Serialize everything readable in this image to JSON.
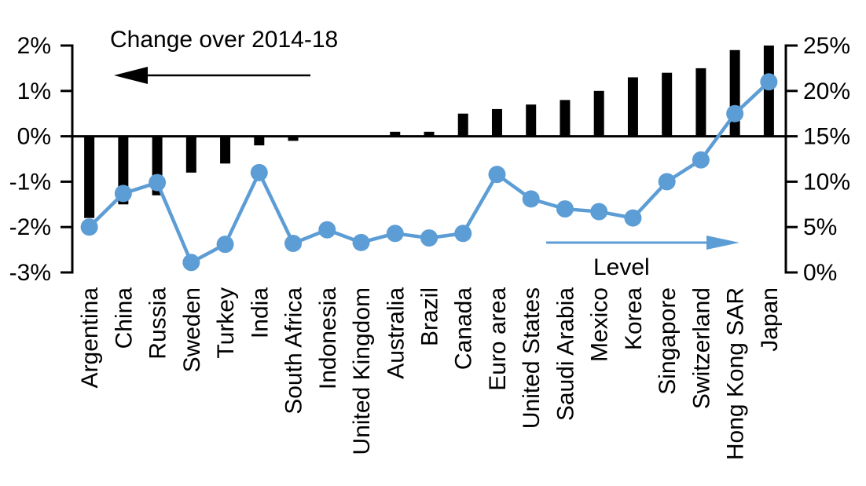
{
  "chart": {
    "left_series_label": "Change over 2014-18",
    "right_series_label": "Level"
  },
  "colors": {
    "bar": "#000000",
    "line": "#5D9DD5",
    "axis": "#000000"
  },
  "chart_data": {
    "type": "bar",
    "title": "",
    "subtitle": "",
    "grid": false,
    "legend_position": "none (in-plot arrow annotations)",
    "categories": [
      "Argentina",
      "China",
      "Russia",
      "Sweden",
      "Turkey",
      "India",
      "South Africa",
      "Indonesia",
      "United Kingdom",
      "Australia",
      "Brazil",
      "Canada",
      "Euro area",
      "United States",
      "Saudi Arabia",
      "Mexico",
      "Korea",
      "Singapore",
      "Switzerland",
      "Hong Kong SAR",
      "Japan"
    ],
    "series": [
      {
        "name": "Change over 2014-18",
        "type": "bar",
        "axis": "left",
        "values": [
          -1.8,
          -1.5,
          -1.3,
          -0.8,
          -0.6,
          -0.2,
          -0.1,
          0,
          0,
          0.1,
          0.1,
          0.5,
          0.6,
          0.7,
          0.8,
          1.0,
          1.3,
          1.4,
          1.5,
          1.9,
          2.0
        ]
      },
      {
        "name": "Level",
        "type": "line",
        "axis": "right",
        "values": [
          5.0,
          8.7,
          9.9,
          1.1,
          3.1,
          11.0,
          3.2,
          4.7,
          3.3,
          4.3,
          3.8,
          4.3,
          10.8,
          8.1,
          7.0,
          6.7,
          6.0,
          10.0,
          12.4,
          17.5,
          21.0
        ]
      }
    ],
    "left_axis": {
      "label": "Change over 2014-18",
      "min": -3,
      "max": 2,
      "tick_values": [
        2,
        1,
        0,
        -1,
        -2,
        -3
      ],
      "tick_labels": [
        "2%",
        "1%",
        "0%",
        "-1%",
        "-2%",
        "-3%"
      ]
    },
    "right_axis": {
      "label": "Level",
      "min": 0,
      "max": 25,
      "tick_values": [
        25,
        20,
        15,
        10,
        5,
        0
      ],
      "tick_labels": [
        "25%",
        "20%",
        "15%",
        "10%",
        "5%",
        "0%"
      ]
    }
  }
}
